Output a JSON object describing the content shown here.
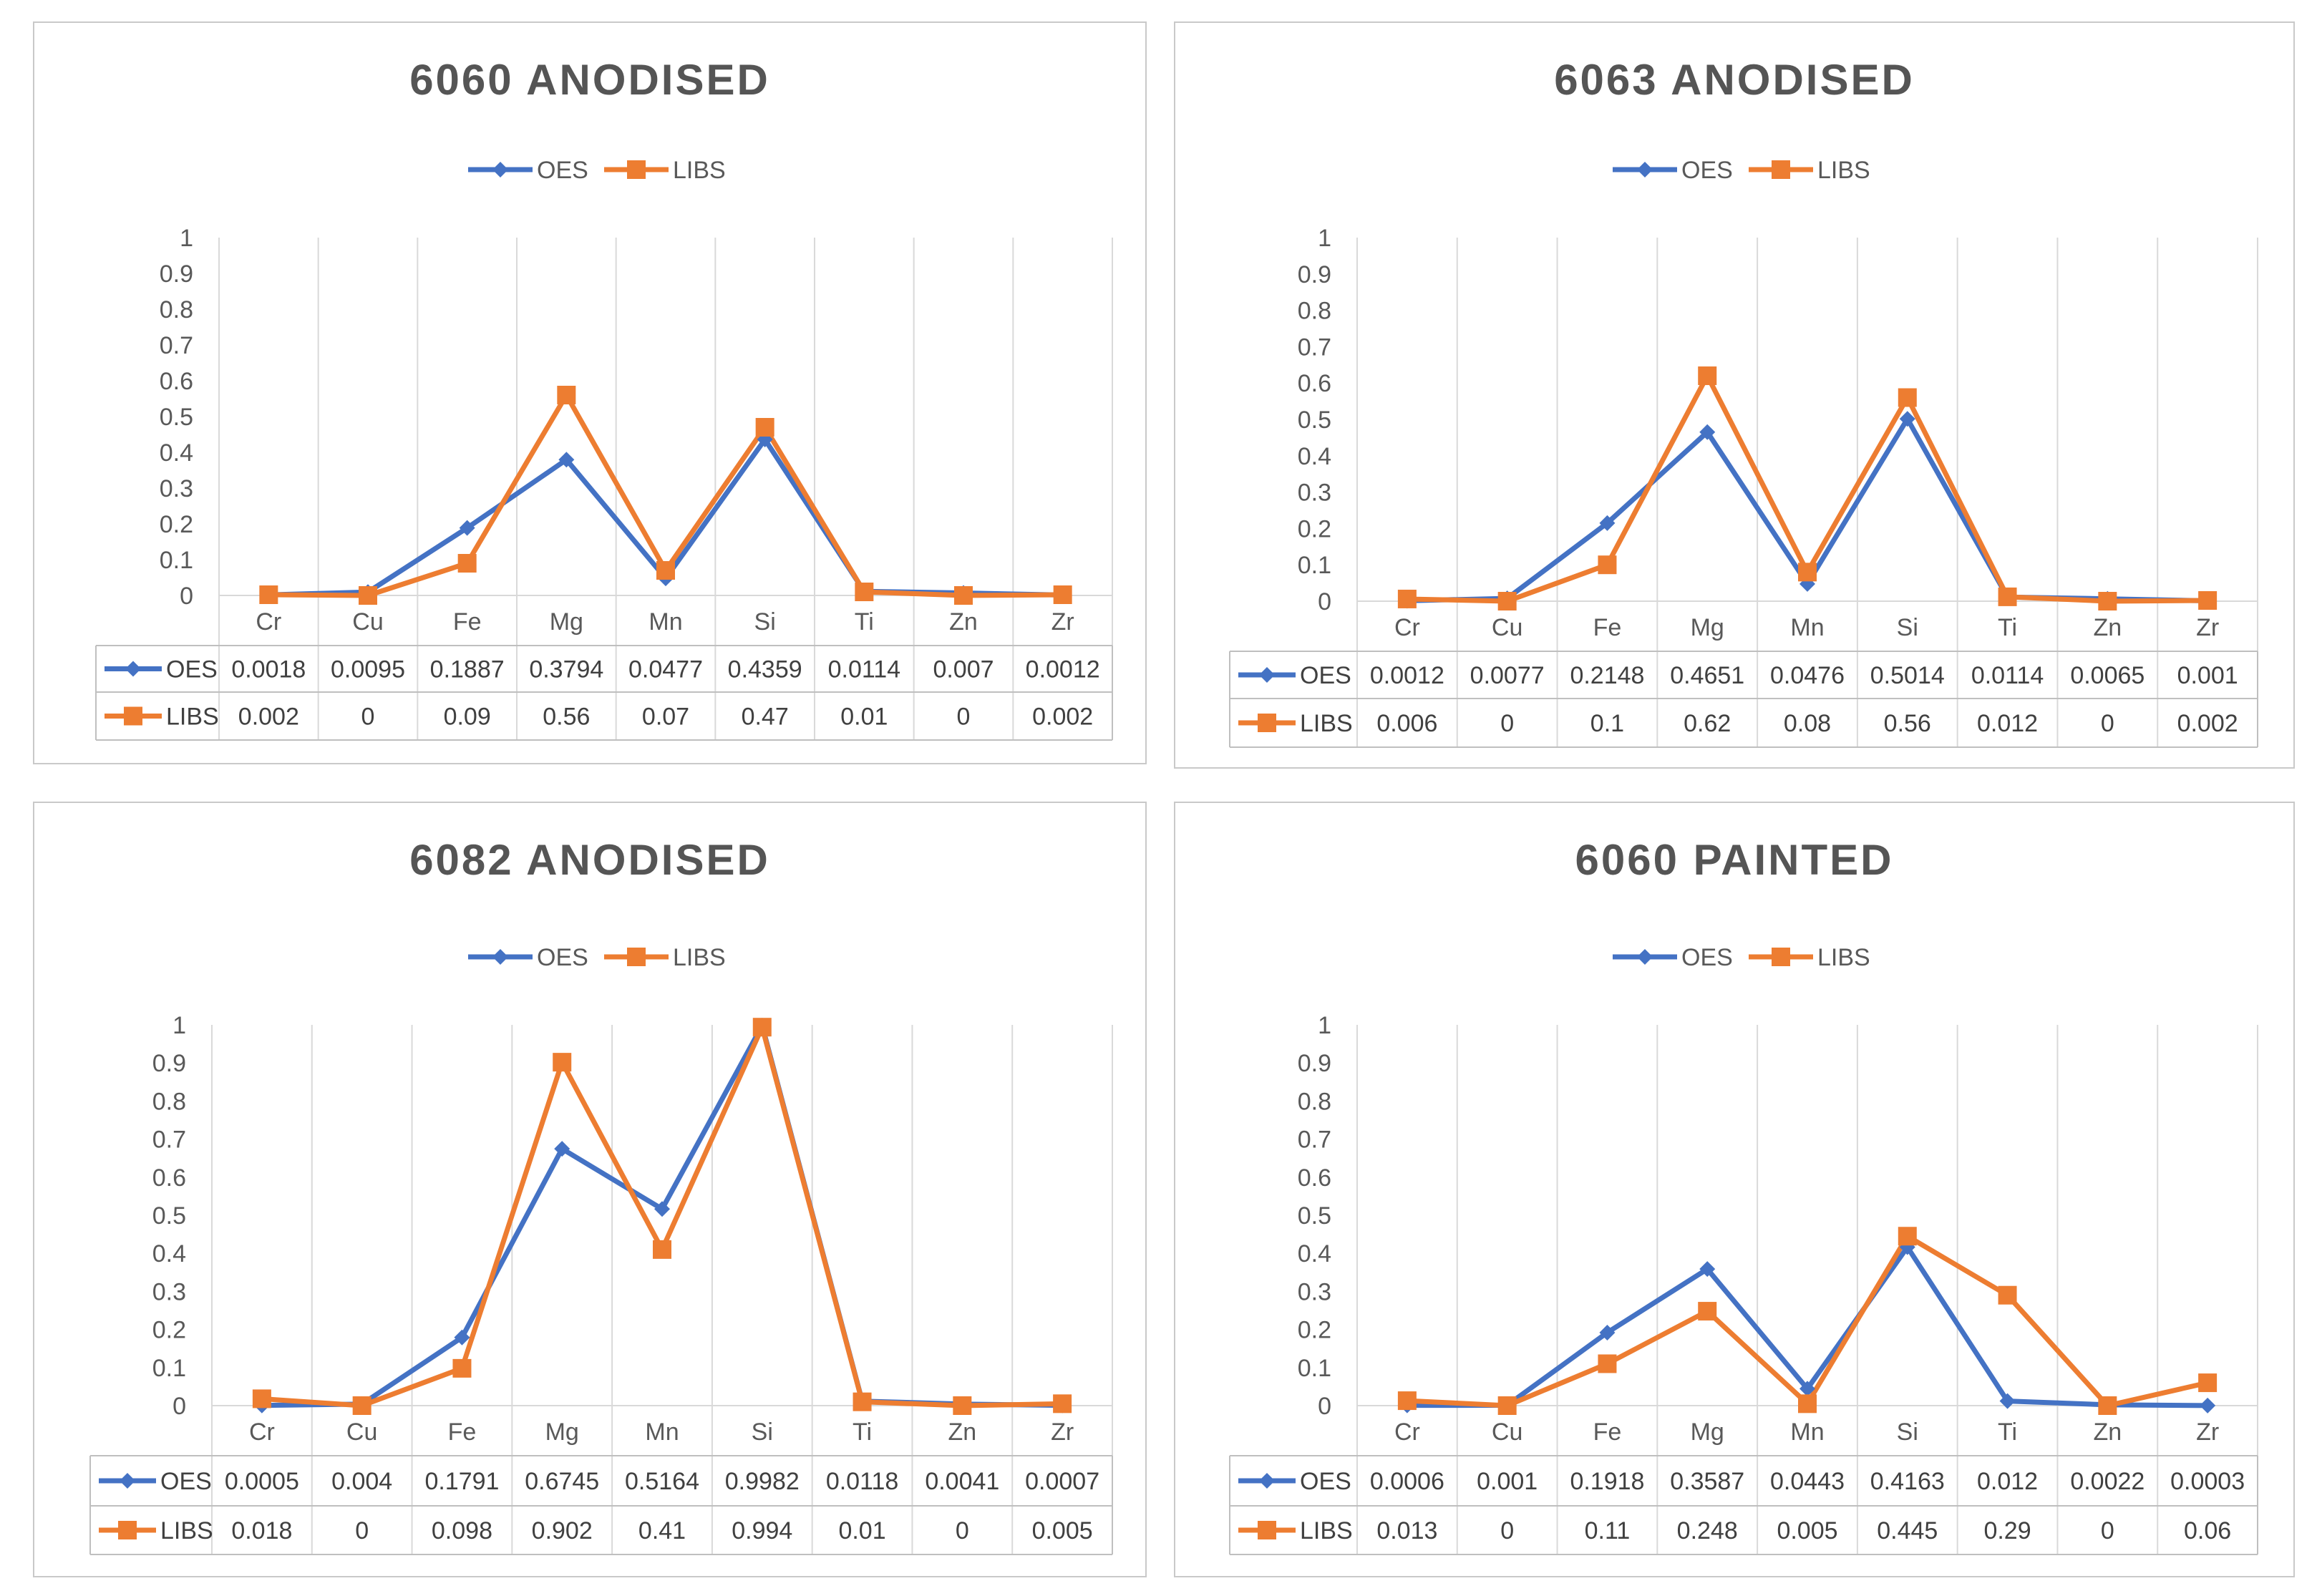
{
  "colors": {
    "OES": "#4472C4",
    "LIBS": "#ED7D31",
    "grid": "#d9d9d9",
    "table": "#bfbfbf"
  },
  "chart_data": [
    {
      "type": "line",
      "title": "6060 ANODISED",
      "categories": [
        "Cr",
        "Cu",
        "Fe",
        "Mg",
        "Mn",
        "Si",
        "Ti",
        "Zn",
        "Zr"
      ],
      "yticks": [
        "0",
        "0.1",
        "0.2",
        "0.3",
        "0.4",
        "0.5",
        "0.6",
        "0.7",
        "0.8",
        "0.9",
        "1"
      ],
      "ylim": [
        0,
        1
      ],
      "grid": "vertical",
      "legend": "top-center",
      "series": [
        {
          "name": "OES",
          "marker": "diamond",
          "values": [
            0.0018,
            0.0095,
            0.1887,
            0.3794,
            0.0477,
            0.4359,
            0.0114,
            0.007,
            0.0012
          ],
          "labels": [
            "0.0018",
            "0.0095",
            "0.1887",
            "0.3794",
            "0.0477",
            "0.4359",
            "0.0114",
            "0.007",
            "0.0012"
          ]
        },
        {
          "name": "LIBS",
          "marker": "square",
          "values": [
            0.002,
            0,
            0.09,
            0.56,
            0.07,
            0.47,
            0.01,
            0,
            0.002
          ],
          "labels": [
            "0.002",
            "0",
            "0.09",
            "0.56",
            "0.07",
            "0.47",
            "0.01",
            "0",
            "0.002"
          ]
        }
      ]
    },
    {
      "type": "line",
      "title": "6063 ANODISED",
      "categories": [
        "Cr",
        "Cu",
        "Fe",
        "Mg",
        "Mn",
        "Si",
        "Ti",
        "Zn",
        "Zr"
      ],
      "yticks": [
        "0",
        "0.1",
        "0.2",
        "0.3",
        "0.4",
        "0.5",
        "0.6",
        "0.7",
        "0.8",
        "0.9",
        "1"
      ],
      "ylim": [
        0,
        1
      ],
      "grid": "vertical",
      "legend": "top-center",
      "series": [
        {
          "name": "OES",
          "marker": "diamond",
          "values": [
            0.0012,
            0.0077,
            0.2148,
            0.4651,
            0.0476,
            0.5014,
            0.0114,
            0.0065,
            0.001
          ],
          "labels": [
            "0.0012",
            "0.0077",
            "0.2148",
            "0.4651",
            "0.0476",
            "0.5014",
            "0.0114",
            "0.0065",
            "0.001"
          ]
        },
        {
          "name": "LIBS",
          "marker": "square",
          "values": [
            0.006,
            0,
            0.1,
            0.62,
            0.08,
            0.56,
            0.012,
            0,
            0.002
          ],
          "labels": [
            "0.006",
            "0",
            "0.1",
            "0.62",
            "0.08",
            "0.56",
            "0.012",
            "0",
            "0.002"
          ]
        }
      ]
    },
    {
      "type": "line",
      "title": "6082 ANODISED",
      "categories": [
        "Cr",
        "Cu",
        "Fe",
        "Mg",
        "Mn",
        "Si",
        "Ti",
        "Zn",
        "Zr"
      ],
      "yticks": [
        "0",
        "0.1",
        "0.2",
        "0.3",
        "0.4",
        "0.5",
        "0.6",
        "0.7",
        "0.8",
        "0.9",
        "1"
      ],
      "ylim": [
        0,
        1
      ],
      "grid": "vertical",
      "legend": "top-center",
      "series": [
        {
          "name": "OES",
          "marker": "diamond",
          "values": [
            0.0005,
            0.004,
            0.1791,
            0.6745,
            0.5164,
            0.9982,
            0.0118,
            0.0041,
            0.0007
          ],
          "labels": [
            "0.0005",
            "0.004",
            "0.1791",
            "0.6745",
            "0.5164",
            "0.9982",
            "0.0118",
            "0.0041",
            "0.0007"
          ]
        },
        {
          "name": "LIBS",
          "marker": "square",
          "values": [
            0.018,
            0,
            0.098,
            0.902,
            0.41,
            0.994,
            0.01,
            0,
            0.005
          ],
          "labels": [
            "0.018",
            "0",
            "0.098",
            "0.902",
            "0.41",
            "0.994",
            "0.01",
            "0",
            "0.005"
          ]
        }
      ]
    },
    {
      "type": "line",
      "title": "6060 PAINTED",
      "categories": [
        "Cr",
        "Cu",
        "Fe",
        "Mg",
        "Mn",
        "Si",
        "Ti",
        "Zn",
        "Zr"
      ],
      "yticks": [
        "0",
        "0.1",
        "0.2",
        "0.3",
        "0.4",
        "0.5",
        "0.6",
        "0.7",
        "0.8",
        "0.9",
        "1"
      ],
      "ylim": [
        0,
        1
      ],
      "grid": "vertical",
      "legend": "top-center",
      "series": [
        {
          "name": "OES",
          "marker": "diamond",
          "values": [
            0.0006,
            0.001,
            0.1918,
            0.3587,
            0.0443,
            0.4163,
            0.012,
            0.0022,
            0.0003
          ],
          "labels": [
            "0.0006",
            "0.001",
            "0.1918",
            "0.3587",
            "0.0443",
            "0.4163",
            "0.012",
            "0.0022",
            "0.0003"
          ]
        },
        {
          "name": "LIBS",
          "marker": "square",
          "values": [
            0.013,
            0,
            0.11,
            0.248,
            0.005,
            0.445,
            0.29,
            0,
            0.06
          ],
          "labels": [
            "0.013",
            "0",
            "0.11",
            "0.248",
            "0.005",
            "0.445",
            "0.29",
            "0",
            "0.06"
          ]
        }
      ]
    }
  ]
}
